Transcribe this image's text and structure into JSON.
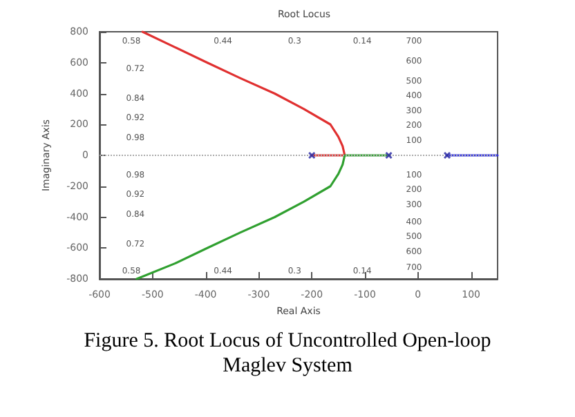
{
  "chart_data": {
    "type": "line",
    "title": "Root Locus",
    "xlabel": "Real Axis",
    "ylabel": "Imaginary Axis",
    "xlim": [
      -600,
      150
    ],
    "xticks": [
      -600,
      -500,
      -400,
      -300,
      -200,
      -100,
      0,
      100
    ],
    "ylim": [
      -800,
      800
    ],
    "yticks": [
      -800,
      -600,
      -400,
      -200,
      0,
      200,
      400,
      600,
      800
    ],
    "grid": false,
    "line_style": "solid",
    "marker": "none",
    "series": [
      {
        "color": "#e03030",
        "x": [
          -200,
          -138,
          -142,
          -150,
          -165,
          -215,
          -270,
          -335,
          -397,
          -458,
          -519
        ],
        "values": [
          0,
          0,
          60,
          120,
          200,
          300,
          400,
          500,
          600,
          700,
          800
        ]
      },
      {
        "color": "#30a030",
        "x": [
          -55,
          -138,
          -142,
          -150,
          -165,
          -215,
          -270,
          -335,
          -397,
          -458,
          -530
        ],
        "values": [
          0,
          0,
          -60,
          -120,
          -200,
          -300,
          -400,
          -500,
          -600,
          -700,
          -800
        ]
      },
      {
        "color": "#3030e0",
        "x": [
          55,
          150
        ],
        "values": [
          0,
          0
        ]
      },
      {
        "type": "scatter",
        "marker": "cross",
        "color": "#2020a0",
        "x": [
          -200,
          -55,
          55
        ],
        "values": [
          0,
          0,
          0
        ]
      }
    ],
    "ref_lines": [
      {
        "axis": "y",
        "value": 0,
        "color": "#aaaaaa",
        "line_style": "dotted"
      }
    ],
    "annotations": [
      "0.58",
      "0.44",
      "0.3",
      "0.14",
      "0.58",
      "0.44",
      "0.3",
      "0.14",
      "0.72",
      "0.84",
      "0.92",
      "0.98",
      "0.98",
      "0.92",
      "0.84",
      "0.72",
      "700",
      "600",
      "500",
      "400",
      "300",
      "200",
      "100",
      "100",
      "200",
      "300",
      "400",
      "500",
      "600",
      "700",
      "Figure 5. Root Locus of Uncontrolled Open-loop Maglev System"
    ]
  }
}
